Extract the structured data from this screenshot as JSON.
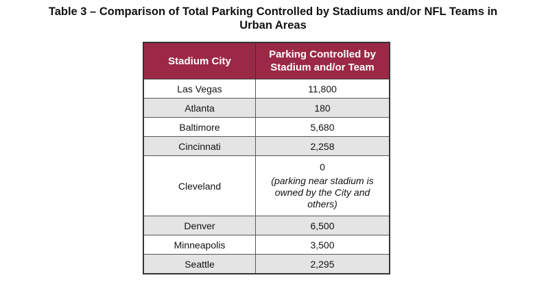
{
  "title_line1": "Table 3 – Comparison of Total Parking Controlled by Stadiums and/or NFL Teams in",
  "title_line2": "Urban Areas",
  "headers": [
    "Stadium City",
    "Parking Controlled by Stadium and/or Team"
  ],
  "rows": [
    {
      "city": "Las Vegas",
      "parking": "11,800"
    },
    {
      "city": "Atlanta",
      "parking": "180"
    },
    {
      "city": "Baltimore",
      "parking": "5,680"
    },
    {
      "city": "Cincinnati",
      "parking": "2,258"
    },
    {
      "city": "Cleveland",
      "parking": "0",
      "note": "(parking near stadium is owned by the City and others)"
    },
    {
      "city": "Denver",
      "parking": "6,500"
    },
    {
      "city": "Minneapolis",
      "parking": "3,500"
    },
    {
      "city": "Seattle",
      "parking": "2,295"
    }
  ],
  "colors": {
    "header_bg": "#9b2945",
    "shade": "#e4e4e4"
  }
}
